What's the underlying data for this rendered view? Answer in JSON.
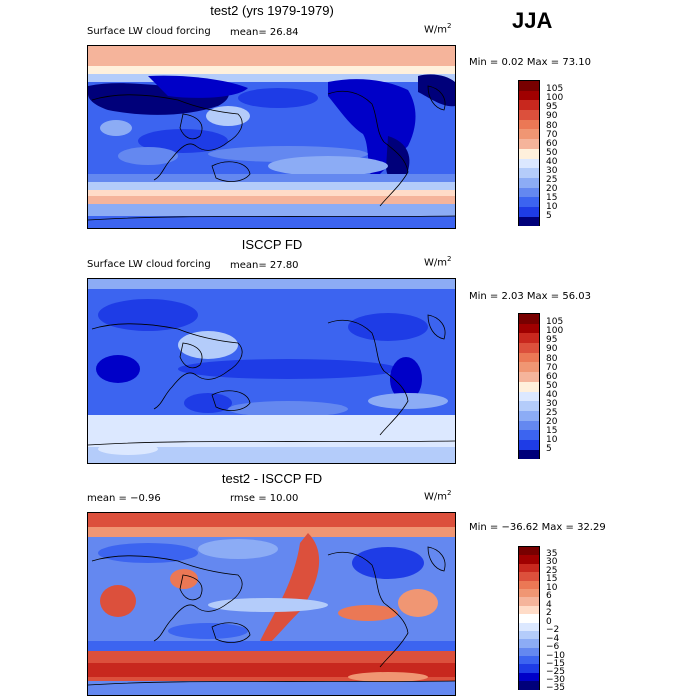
{
  "season": "JJA",
  "colors": {
    "ramp_main": [
      "#00007a",
      "#0000c8",
      "#1e3ce6",
      "#3c64f0",
      "#6488f0",
      "#8cacf5",
      "#b4ccfa",
      "#dce8ff",
      "#fff0dc",
      "#ffdcc8",
      "#f5b49b",
      "#f09673",
      "#eb7855",
      "#dc503c",
      "#c8281e",
      "#a00000",
      "#780000"
    ],
    "ramp_diff": [
      "#00007a",
      "#0000c8",
      "#1e3ce6",
      "#3c64f0",
      "#6488f0",
      "#8cacf5",
      "#b4ccfa",
      "#dce8ff",
      "#ffffff",
      "#ffdcc8",
      "#f5b49b",
      "#f09673",
      "#eb7855",
      "#dc503c",
      "#c8281e",
      "#a00000",
      "#780000"
    ]
  },
  "panels": [
    {
      "title": "test2 (yrs 1979-1979)",
      "variable": "Surface LW cloud forcing",
      "mean_text": "mean=  26.84",
      "units": "W/m",
      "units_sup": "2",
      "minmax": "Min =   0.02 Max =  73.10",
      "colorbar_labels": [
        "105",
        "100",
        "95",
        "90",
        "80",
        "70",
        "60",
        "50",
        "40",
        "30",
        "25",
        "20",
        "15",
        "10",
        "5"
      ]
    },
    {
      "title": "ISCCP FD",
      "variable": "Surface LW cloud forcing",
      "mean_text": "mean=  27.80",
      "units": "W/m",
      "units_sup": "2",
      "minmax": "Min =   2.03 Max =  56.03",
      "colorbar_labels": [
        "105",
        "100",
        "95",
        "90",
        "80",
        "70",
        "60",
        "50",
        "40",
        "30",
        "25",
        "20",
        "15",
        "10",
        "5"
      ]
    },
    {
      "title": "test2 - ISCCP FD",
      "mean_text": "mean =  −0.96",
      "rmse_text": "rmse =  10.00",
      "units": "W/m",
      "units_sup": "2",
      "minmax": "Min = −36.62 Max =  32.29",
      "colorbar_labels": [
        "35",
        "30",
        "25",
        "15",
        "10",
        "6",
        "4",
        "2",
        "0",
        "−2",
        "−4",
        "−6",
        "−10",
        "−15",
        "−25",
        "−30",
        "−35"
      ]
    }
  ],
  "chart_data": [
    {
      "type": "heatmap",
      "title": "test2 (yrs 1979-1979)",
      "subtitle": "Surface LW cloud forcing",
      "units": "W/m2",
      "mean": 26.84,
      "min": 0.02,
      "max": 73.1,
      "levels": [
        5,
        10,
        15,
        20,
        25,
        30,
        40,
        50,
        60,
        70,
        80,
        90,
        95,
        100,
        105
      ]
    },
    {
      "type": "heatmap",
      "title": "ISCCP FD",
      "subtitle": "Surface LW cloud forcing",
      "units": "W/m2",
      "mean": 27.8,
      "min": 2.03,
      "max": 56.03,
      "levels": [
        5,
        10,
        15,
        20,
        25,
        30,
        40,
        50,
        60,
        70,
        80,
        90,
        95,
        100,
        105
      ]
    },
    {
      "type": "heatmap",
      "title": "test2 - ISCCP FD",
      "units": "W/m2",
      "mean": -0.96,
      "rmse": 10.0,
      "min": -36.62,
      "max": 32.29,
      "levels": [
        -35,
        -30,
        -25,
        -15,
        -10,
        -6,
        -4,
        -2,
        0,
        2,
        4,
        6,
        10,
        15,
        25,
        30,
        35
      ]
    }
  ]
}
